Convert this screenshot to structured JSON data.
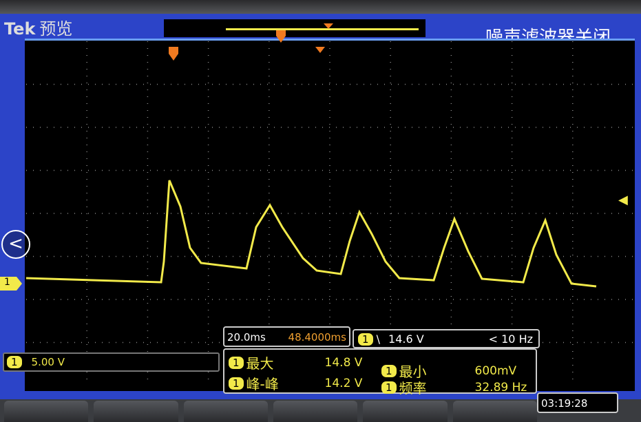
{
  "header": {
    "brand": "Tek",
    "mode": "预览",
    "filter_status": "噪声滤波器关闭"
  },
  "channel": {
    "number": "1",
    "scale": "5.00 V"
  },
  "timebase": {
    "scale": "20.0ms",
    "position": "48.4000ms"
  },
  "trigger": {
    "channel": "1",
    "slope_icon": "falling-edge-icon",
    "slope_glyph": "\\",
    "level": "14.6 V",
    "frequency": "< 10 Hz"
  },
  "measurements": [
    {
      "channel": "1",
      "label": "最大",
      "value": "14.8 V"
    },
    {
      "channel": "1",
      "label": "峰-峰",
      "value": "14.2 V"
    },
    {
      "channel": "1",
      "label": "最小",
      "value": "600mV"
    },
    {
      "channel": "1",
      "label": "频率",
      "value": "32.89 Hz"
    }
  ],
  "clock": "03:19:28",
  "back_glyph": "<",
  "colors": {
    "trace": "#f2ea4a",
    "screen": "#2c44c8",
    "marker": "#f07a20"
  }
}
